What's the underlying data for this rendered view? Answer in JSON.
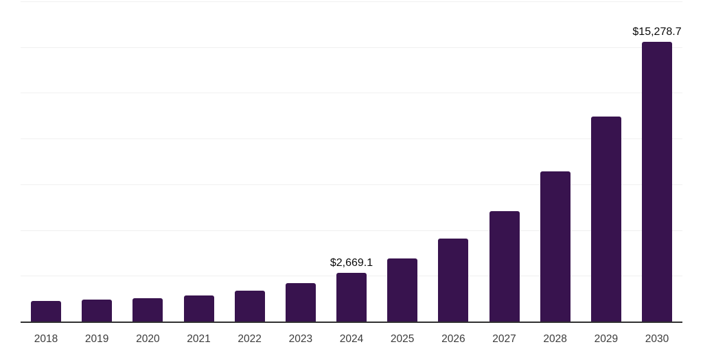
{
  "chart_data": {
    "type": "bar",
    "categories": [
      "2018",
      "2019",
      "2020",
      "2021",
      "2022",
      "2023",
      "2024",
      "2025",
      "2026",
      "2027",
      "2028",
      "2029",
      "2030"
    ],
    "values": [
      1130,
      1200,
      1280,
      1440,
      1680,
      2110,
      2669.1,
      3450,
      4550,
      6050,
      8200,
      11200,
      15278.7
    ],
    "data_labels": [
      "",
      "",
      "",
      "",
      "",
      "",
      "$2,669.1",
      "",
      "",
      "",
      "",
      "",
      "$15,278.7"
    ],
    "title": "",
    "xlabel": "",
    "ylabel": "",
    "ylim": [
      0,
      17500
    ],
    "gridline_step": 2500,
    "grid": "horizontal",
    "legend": "none",
    "colors": {
      "bar": "#38134E",
      "axis_line": "#303030",
      "gridline": "#f0f0f0",
      "value_label": "#0a0a0a",
      "tick_label": "#3b3b3b",
      "background": "#ffffff"
    }
  }
}
